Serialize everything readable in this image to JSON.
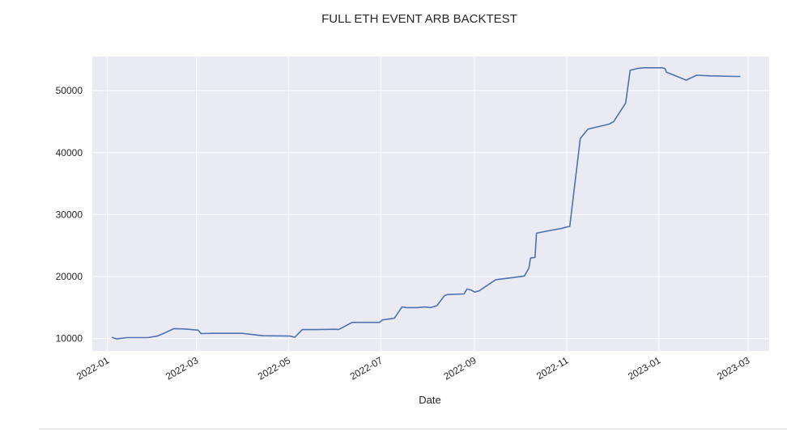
{
  "chart_data": {
    "type": "line",
    "title": "FULL ETH EVENT ARB BACKTEST",
    "xlabel": "Date",
    "ylabel": "",
    "x_axis_type": "date",
    "xlim": [
      "2021-12-22",
      "2023-03-15"
    ],
    "ylim": [
      8000,
      55500
    ],
    "x_ticks": [
      {
        "value": "2022-01-01",
        "label": "2022-01"
      },
      {
        "value": "2022-03-01",
        "label": "2022-03"
      },
      {
        "value": "2022-05-01",
        "label": "2022-05"
      },
      {
        "value": "2022-07-01",
        "label": "2022-07"
      },
      {
        "value": "2022-09-01",
        "label": "2022-09"
      },
      {
        "value": "2022-11-01",
        "label": "2022-11"
      },
      {
        "value": "2023-01-01",
        "label": "2023-01"
      },
      {
        "value": "2023-03-01",
        "label": "2023-03"
      }
    ],
    "y_ticks": [
      {
        "value": 10000,
        "label": "10000"
      },
      {
        "value": 20000,
        "label": "20000"
      },
      {
        "value": 30000,
        "label": "30000"
      },
      {
        "value": 40000,
        "label": "40000"
      },
      {
        "value": 50000,
        "label": "50000"
      }
    ],
    "grid": true,
    "legend": "none",
    "colors": {
      "plot_background": "#eaeaf2",
      "grid": "#ffffff",
      "line": "#4c72b0"
    },
    "series": [
      {
        "x": [
          "2022-01-04",
          "2022-01-07",
          "2022-01-14",
          "2022-01-28",
          "2022-02-03",
          "2022-02-07",
          "2022-02-14",
          "2022-02-21",
          "2022-02-28",
          "2022-03-02",
          "2022-03-04",
          "2022-03-12",
          "2022-03-31",
          "2022-04-14",
          "2022-05-02",
          "2022-05-05",
          "2022-05-10",
          "2022-05-20",
          "2022-06-01",
          "2022-06-03",
          "2022-06-12",
          "2022-06-30",
          "2022-07-02",
          "2022-07-10",
          "2022-07-15",
          "2022-07-18",
          "2022-07-25",
          "2022-07-30",
          "2022-08-03",
          "2022-08-07",
          "2022-08-12",
          "2022-08-14",
          "2022-08-25",
          "2022-08-27",
          "2022-08-30",
          "2022-09-01",
          "2022-09-04",
          "2022-09-15",
          "2022-09-25",
          "2022-10-04",
          "2022-10-07",
          "2022-10-08",
          "2022-10-11",
          "2022-10-12",
          "2022-10-18",
          "2022-10-29",
          "2022-11-01",
          "2022-11-03",
          "2022-11-10",
          "2022-11-15",
          "2022-11-29",
          "2022-12-02",
          "2022-12-10",
          "2022-12-13",
          "2022-12-18",
          "2022-12-22",
          "2023-01-03",
          "2023-01-05",
          "2023-01-06",
          "2023-01-12",
          "2023-01-19",
          "2023-01-26",
          "2023-02-04",
          "2023-02-20",
          "2023-02-24"
        ],
        "y": [
          10200,
          9950,
          10150,
          10150,
          10400,
          10800,
          11600,
          11550,
          11400,
          11350,
          10800,
          10850,
          10850,
          10450,
          10400,
          10200,
          11450,
          11450,
          11500,
          11450,
          12600,
          12600,
          13000,
          13300,
          15100,
          15000,
          15000,
          15100,
          15000,
          15300,
          16900,
          17100,
          17200,
          18000,
          17800,
          17500,
          17700,
          19500,
          19800,
          20100,
          21400,
          23000,
          23100,
          27000,
          27300,
          27800,
          28000,
          28100,
          42300,
          43800,
          44600,
          45000,
          48000,
          53300,
          53600,
          53700,
          53700,
          53600,
          53000,
          52400,
          51700,
          52500,
          52400,
          52300,
          52300
        ]
      }
    ]
  }
}
